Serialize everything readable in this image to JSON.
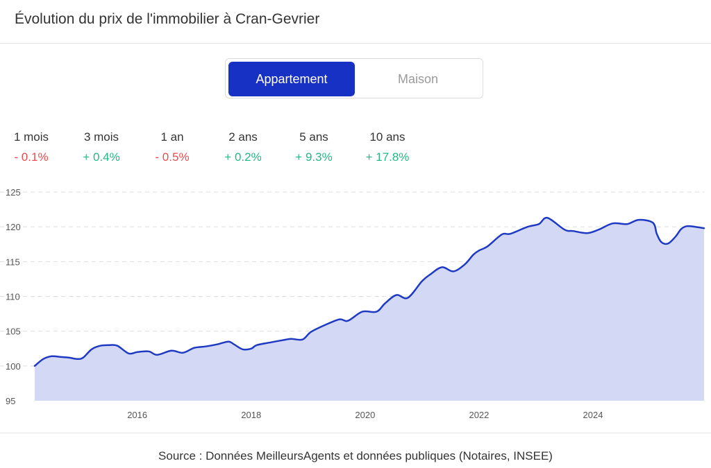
{
  "header": {
    "title": "Évolution du prix de l'immobilier à Cran-Gevrier"
  },
  "toggle": {
    "appartement": "Appartement",
    "maison": "Maison"
  },
  "stats": [
    {
      "label": "1 mois",
      "value": "- 0.1%",
      "trend": "neg"
    },
    {
      "label": "3 mois",
      "value": "+ 0.4%",
      "trend": "pos"
    },
    {
      "label": "1 an",
      "value": "- 0.5%",
      "trend": "neg"
    },
    {
      "label": "2 ans",
      "value": "+ 0.2%",
      "trend": "pos"
    },
    {
      "label": "5 ans",
      "value": "+ 9.3%",
      "trend": "pos"
    },
    {
      "label": "10 ans",
      "value": "+ 17.8%",
      "trend": "pos"
    }
  ],
  "colors": {
    "accent": "#1631c4",
    "line": "#1f3ac2",
    "area": "#d3d8f4",
    "negative": "#ef4b4b",
    "positive": "#23b886",
    "grid": "#dddddd"
  },
  "chart_data": {
    "type": "area",
    "title": "",
    "xlabel": "",
    "ylabel": "",
    "ylim": [
      95,
      125
    ],
    "yticks": [
      95,
      100,
      105,
      110,
      115,
      120,
      125
    ],
    "xticks": [
      2016,
      2018,
      2020,
      2022,
      2024
    ],
    "xlim": [
      2014.2,
      2025.95
    ],
    "grid": true,
    "series": [
      {
        "name": "",
        "x": [
          2014.2,
          2014.35,
          2014.5,
          2014.65,
          2014.8,
          2014.95,
          2015.05,
          2015.2,
          2015.35,
          2015.5,
          2015.65,
          2015.85,
          2016.0,
          2016.2,
          2016.35,
          2016.6,
          2016.8,
          2017.0,
          2017.2,
          2017.4,
          2017.6,
          2017.7,
          2017.85,
          2018.0,
          2018.1,
          2018.35,
          2018.55,
          2018.7,
          2018.9,
          2019.05,
          2019.3,
          2019.55,
          2019.7,
          2019.95,
          2020.2,
          2020.35,
          2020.55,
          2020.75,
          2021.0,
          2021.15,
          2021.35,
          2021.55,
          2021.75,
          2021.9,
          2022.0,
          2022.15,
          2022.4,
          2022.55,
          2022.85,
          2023.05,
          2023.2,
          2023.5,
          2023.65,
          2023.9,
          2024.1,
          2024.35,
          2024.6,
          2024.8,
          2025.05,
          2025.12,
          2025.2,
          2025.32,
          2025.45,
          2025.55,
          2025.65,
          2025.8,
          2025.95
        ],
        "y": [
          100.0,
          101.0,
          101.4,
          101.3,
          101.2,
          101.0,
          101.2,
          102.4,
          102.9,
          103.0,
          102.9,
          101.8,
          102.0,
          102.1,
          101.6,
          102.2,
          101.9,
          102.6,
          102.8,
          103.1,
          103.5,
          103.1,
          102.4,
          102.5,
          103.0,
          103.4,
          103.7,
          103.9,
          103.8,
          104.9,
          105.9,
          106.7,
          106.5,
          107.8,
          107.8,
          109.0,
          110.2,
          109.8,
          112.2,
          113.2,
          114.2,
          113.6,
          114.6,
          116.0,
          116.6,
          117.2,
          118.9,
          119.0,
          120.0,
          120.4,
          121.3,
          119.6,
          119.4,
          119.1,
          119.6,
          120.5,
          120.4,
          121.0,
          120.6,
          119.0,
          117.8,
          117.6,
          118.6,
          119.7,
          120.1,
          120.0,
          119.8
        ]
      }
    ]
  },
  "footer": {
    "source": "Source : Données MeilleursAgents et données publiques (Notaires, INSEE)"
  }
}
